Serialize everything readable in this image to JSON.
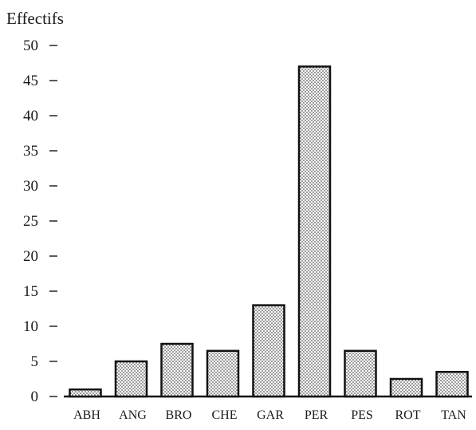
{
  "chart_data": {
    "type": "bar",
    "title": "",
    "ylabel": "Effectifs",
    "xlabel": "",
    "categories": [
      "ABH",
      "ANG",
      "BRO",
      "CHE",
      "GAR",
      "PER",
      "PES",
      "ROT",
      "TAN"
    ],
    "values": [
      1,
      5,
      7.5,
      6.5,
      13,
      47,
      6.5,
      2.5,
      3.5
    ],
    "ylim": [
      0,
      50
    ],
    "yticks": [
      0,
      5,
      10,
      15,
      20,
      25,
      30,
      35,
      40,
      45,
      50
    ],
    "grid": false,
    "bar_pattern": "dotted",
    "colors": {
      "bar_fill": "#c8c8c8",
      "bar_edge": "#111111",
      "text": "#1a1a1a"
    }
  }
}
